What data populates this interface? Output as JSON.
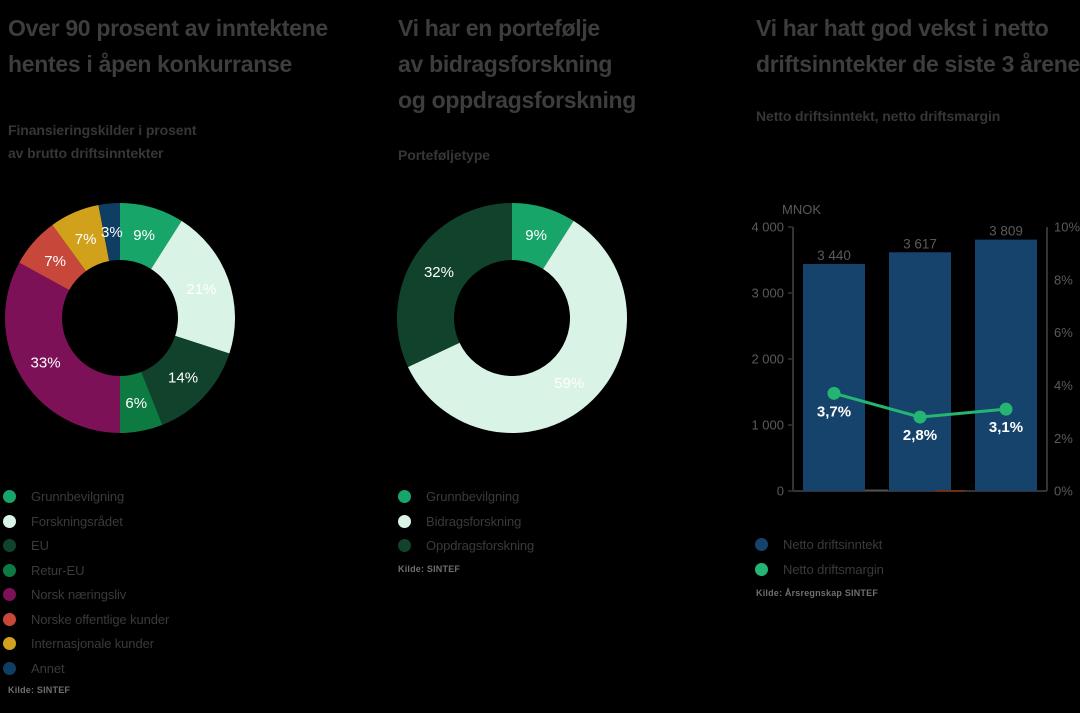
{
  "page": {
    "background": "#000000",
    "text_ghost": "#3d3d3d",
    "white": "#ffffff"
  },
  "chart_data": [
    {
      "type": "pie",
      "donut": true,
      "title": "Over 90 prosent av inntektene hentes i åpen konkurranse",
      "title_lines": [
        "Over 90 prosent av inntektene",
        "hentes i åpen konkurranse"
      ],
      "subtitle": "Finansieringskilder i prosent av brutto driftsinntekter",
      "subtitle_lines": [
        "Finansieringskilder i prosent",
        "av brutto driftsinntekter"
      ],
      "labels": [
        "Grunnbevilgning",
        "Forskningsrådet",
        "EU",
        "Retur-EU",
        "Norsk næringsliv",
        "Norske offentlige kunder",
        "Internasjonale kunder",
        "Annet"
      ],
      "values": [
        9,
        21,
        14,
        6,
        33,
        7,
        7,
        3
      ],
      "slice_labels": [
        "9%",
        "21%",
        "14%",
        "6%",
        "33%",
        "7%",
        "7%",
        "3%"
      ],
      "colors": [
        "#18a56a",
        "#d9f3e6",
        "#11432c",
        "#0d7a42",
        "#7c1158",
        "#c7473b",
        "#d1a11b",
        "#0f3e63"
      ],
      "legend": [
        {
          "label": "Grunnbevilgning",
          "color": "#18a56a"
        },
        {
          "label": "Forskningsrådet",
          "color": "#d9f3e6"
        },
        {
          "label": "EU",
          "color": "#11432c"
        },
        {
          "label": "Retur-EU",
          "color": "#0d7a42"
        },
        {
          "label": "Norsk næringsliv",
          "color": "#7c1158"
        },
        {
          "label": "Norske offentlige kunder",
          "color": "#c7473b"
        },
        {
          "label": "Internasjonale kunder",
          "color": "#d1a11b"
        },
        {
          "label": "Annet",
          "color": "#0f3e63"
        }
      ],
      "source": "Kilde: SINTEF"
    },
    {
      "type": "pie",
      "donut": true,
      "title": "Vi har en portefølje av bidragsforskning og oppdragsforskning",
      "title_lines": [
        "Vi har en portefølje",
        "av bidragsforskning",
        "og oppdragsforskning"
      ],
      "subtitle": "Porteføljetype",
      "subtitle_lines": [
        "Porteføljetype"
      ],
      "labels": [
        "Grunnbevilgning",
        "Bidragsforskning",
        "Oppdragsforskning"
      ],
      "values": [
        9,
        59,
        32
      ],
      "slice_labels": [
        "9%",
        "59%",
        "32%"
      ],
      "colors": [
        "#18a56a",
        "#d9f3e6",
        "#11432c"
      ],
      "legend": [
        {
          "label": "Grunnbevilgning",
          "color": "#18a56a"
        },
        {
          "label": "Bidragsforskning",
          "color": "#d9f3e6"
        },
        {
          "label": "Oppdragsforskning",
          "color": "#11432c"
        }
      ],
      "source": "Kilde: SINTEF"
    },
    {
      "type": "bar",
      "title": "Vi har hatt god vekst i netto driftsinntekter de siste 3 årene",
      "title_lines": [
        "Vi har hatt god vekst i netto",
        "driftsinntekter de siste 3 årene"
      ],
      "subtitle": "Netto driftsinntekt, netto driftsmargin",
      "subtitle_lines": [
        "Netto driftsinntekt, netto driftsmargin"
      ],
      "categories": [
        "",
        "",
        ""
      ],
      "series": [
        {
          "name": "Netto driftsinntekt",
          "type": "bar",
          "axis": "left",
          "values": [
            3440,
            3617,
            3809
          ],
          "value_labels": [
            "3 440",
            "3 617",
            "3 809"
          ],
          "color": "#15436b"
        },
        {
          "name": "Netto driftsmargin",
          "type": "line",
          "axis": "right",
          "values": [
            3.7,
            2.8,
            3.1
          ],
          "value_labels": [
            "3,7%",
            "2,8%",
            "3,1%"
          ],
          "color": "#25b573"
        }
      ],
      "left_axis": {
        "label": "MNOK",
        "min": 0,
        "max": 4000,
        "ticks": [
          "4 000",
          "3 000",
          "2 000",
          "1 000",
          "0"
        ]
      },
      "right_axis": {
        "min": 0,
        "max": 10,
        "ticks": [
          "10%",
          "8%",
          "6%",
          "4%",
          "2%",
          "0%"
        ]
      },
      "grid": false,
      "legend": [
        {
          "label": "Netto driftsinntekt",
          "color": "#15436b"
        },
        {
          "label": "Netto driftsmargin",
          "color": "#25b573"
        }
      ],
      "source": "Kilde: Årsregnskap SINTEF"
    }
  ]
}
